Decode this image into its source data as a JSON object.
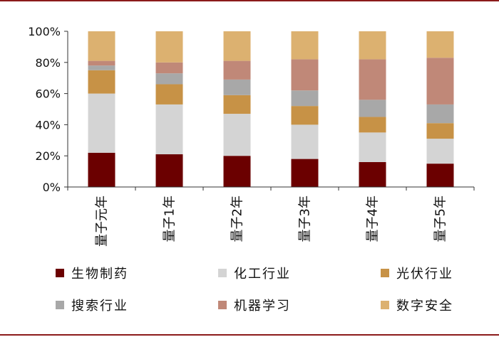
{
  "chart_data": {
    "type": "bar",
    "stacked": true,
    "categories": [
      "量子元年",
      "量子1年",
      "量子2年",
      "量子3年",
      "量子4年",
      "量子5年"
    ],
    "series": [
      {
        "name": "生物制药",
        "color": "#6b0000",
        "values": [
          22,
          21,
          20,
          18,
          16,
          15
        ]
      },
      {
        "name": "化工行业",
        "color": "#d4d4d4",
        "values": [
          38,
          32,
          27,
          22,
          19,
          16
        ]
      },
      {
        "name": "光伏行业",
        "color": "#c79246",
        "values": [
          15,
          13,
          12,
          12,
          10,
          10
        ]
      },
      {
        "name": "搜索行业",
        "color": "#a8a8a8",
        "values": [
          3,
          7,
          10,
          10,
          11,
          12
        ]
      },
      {
        "name": "机器学习",
        "color": "#c08878",
        "values": [
          3,
          7,
          12,
          20,
          26,
          30
        ]
      },
      {
        "name": "数字安全",
        "color": "#dcb170",
        "values": [
          19,
          20,
          19,
          18,
          18,
          17
        ]
      }
    ],
    "y_ticks": [
      "0%",
      "20%",
      "40%",
      "60%",
      "80%",
      "100%"
    ],
    "ylim": [
      0,
      100
    ],
    "grid": false,
    "legend_position": "bottom"
  },
  "frame_color": "#8b1a1a"
}
